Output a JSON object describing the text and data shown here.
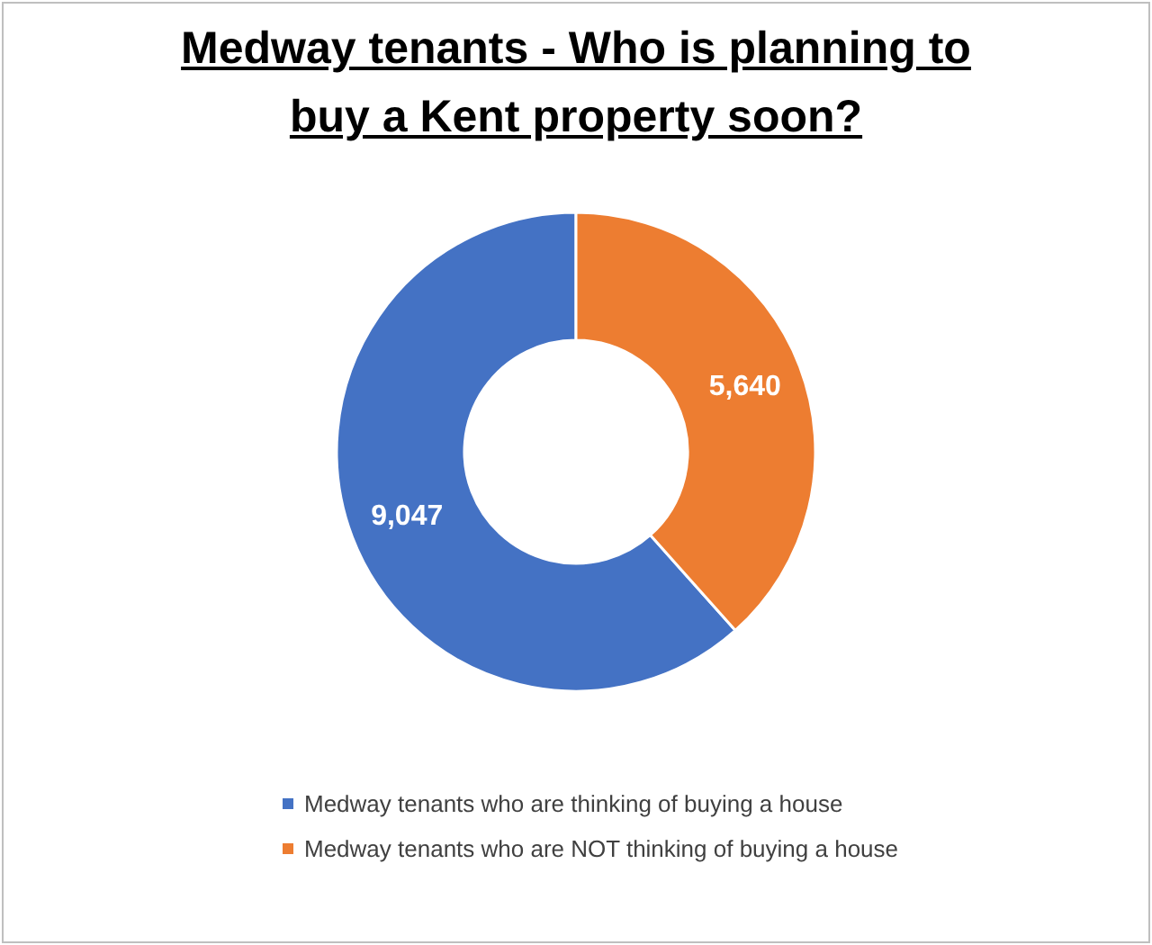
{
  "chart_data": {
    "type": "donut",
    "title": "Medway tenants - Who is planning to buy a Kent property soon?",
    "categories": [
      "Medway tenants who are thinking of buying a house",
      "Medway tenants who are NOT thinking of buying a house"
    ],
    "values": [
      9047,
      5640
    ],
    "colors": [
      "#4472c4",
      "#ed7d31"
    ],
    "value_labels": [
      "9,047",
      "5,640"
    ],
    "legend": "bottom"
  }
}
